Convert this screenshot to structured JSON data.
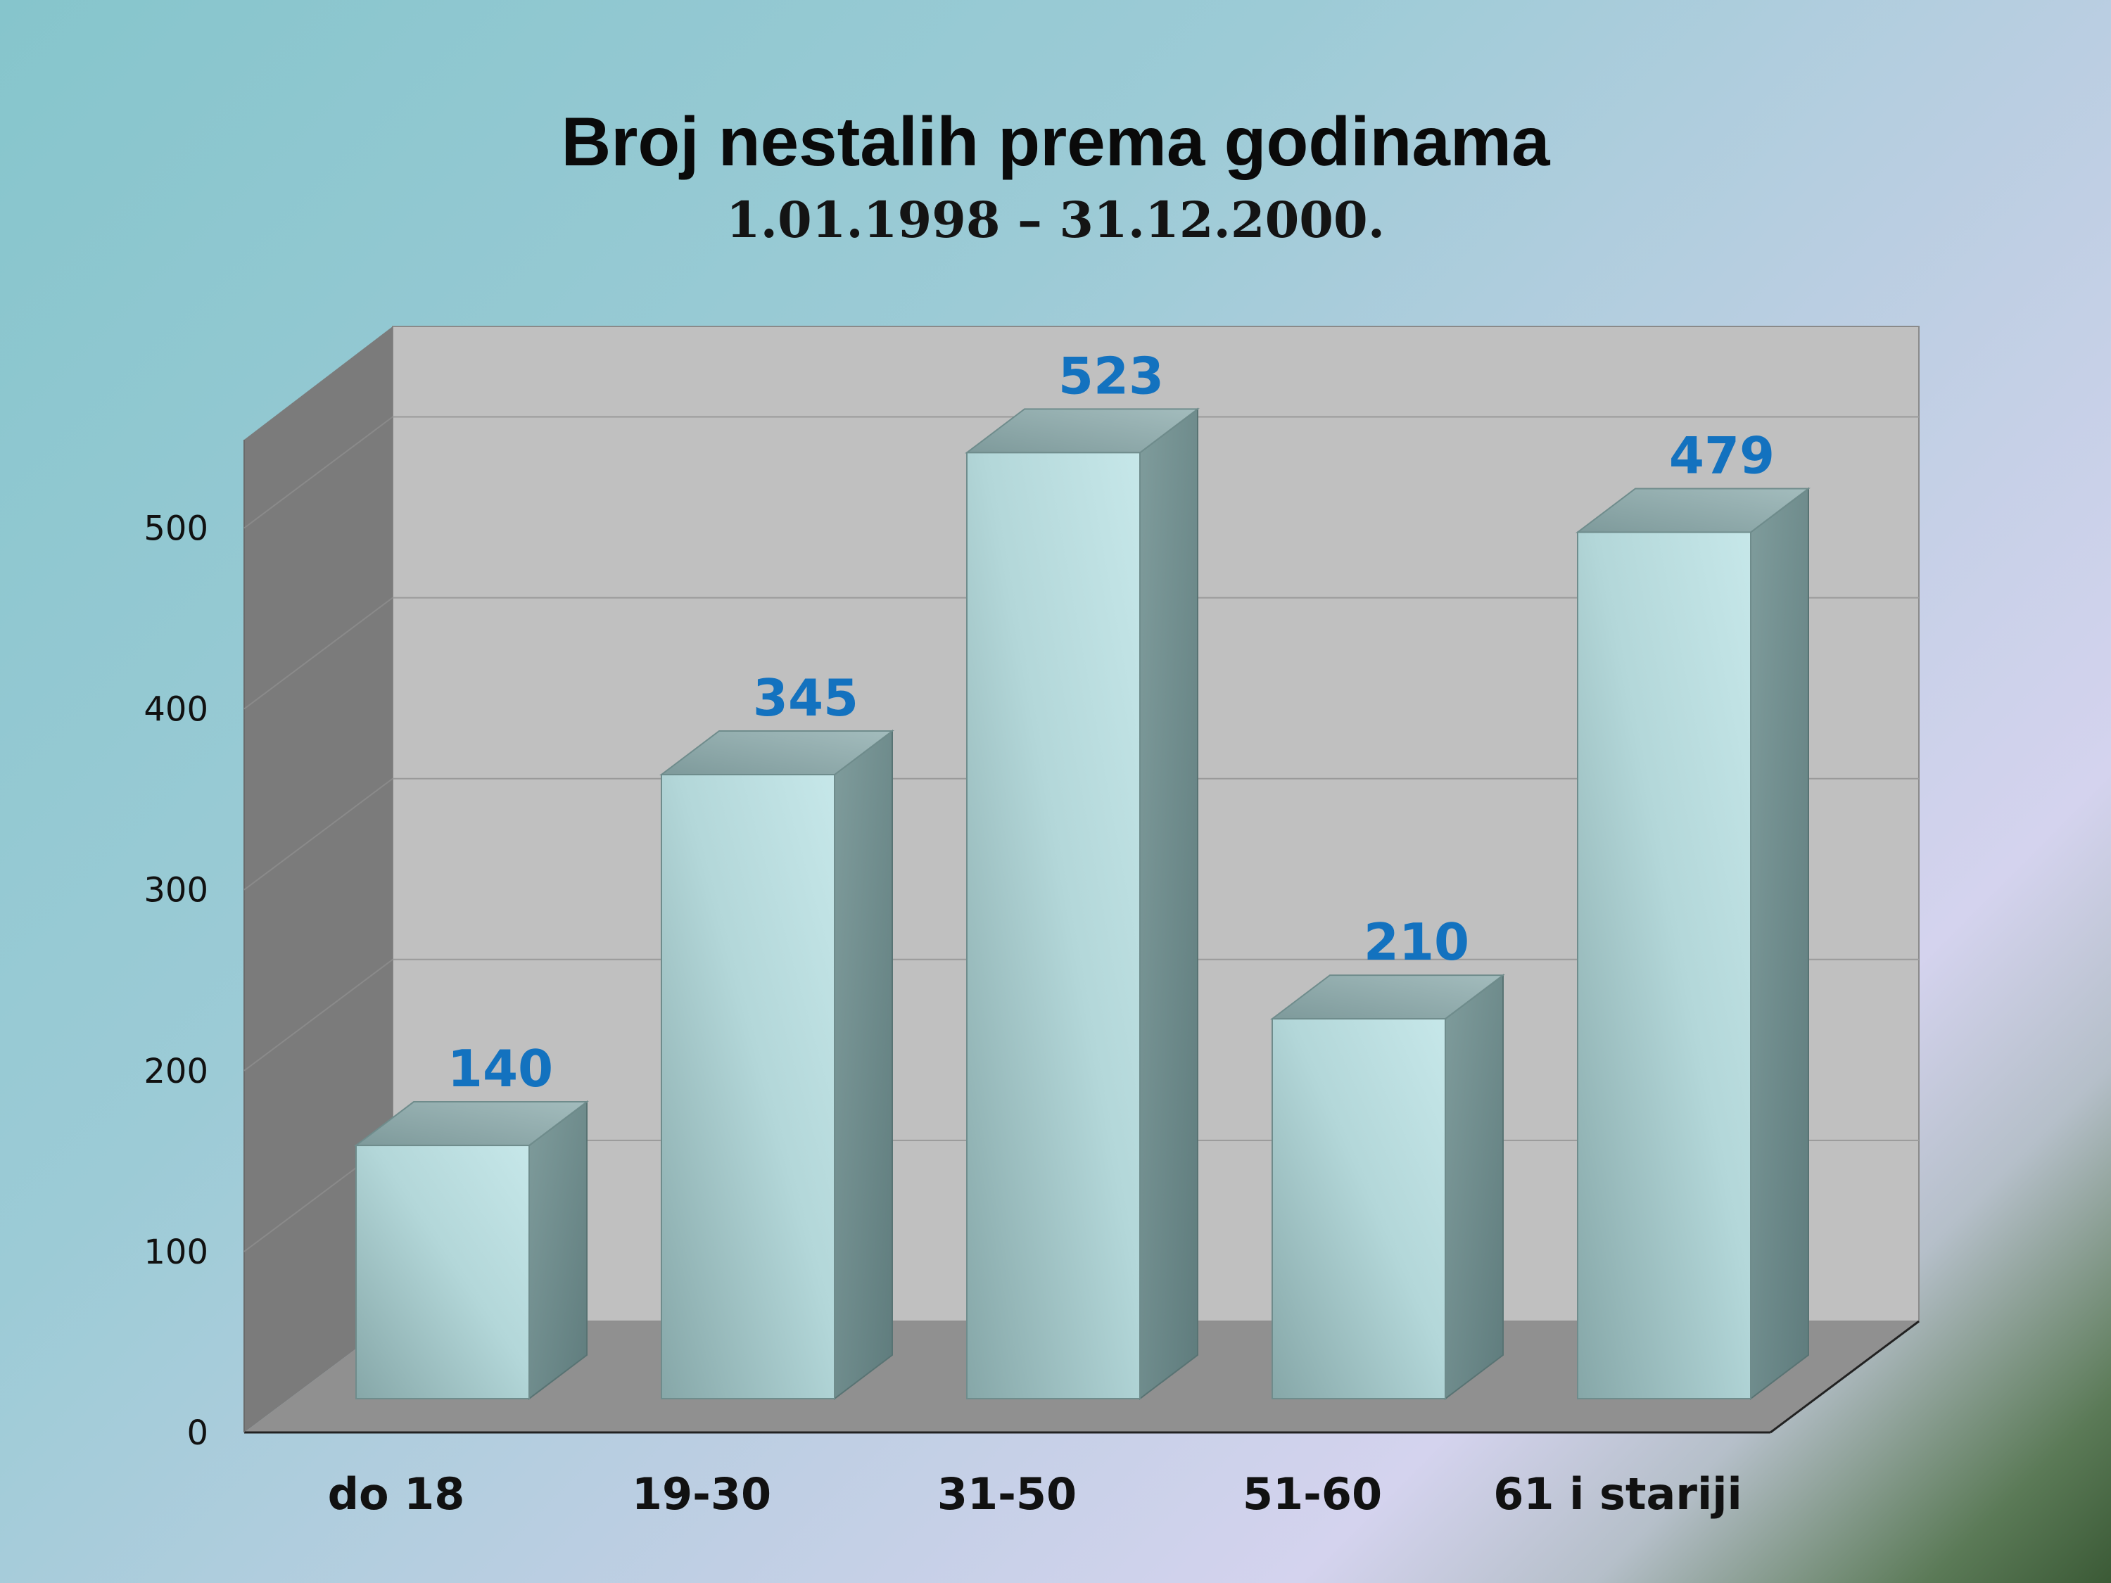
{
  "chart_data": {
    "type": "bar",
    "title": "Broj nestalih prema godinama",
    "subtitle": "1.01.1998 – 31.12.2000.",
    "categories": [
      "do 18",
      "19-30",
      "31-50",
      "51-60",
      "61 i stariji"
    ],
    "values": [
      140,
      345,
      523,
      210,
      479
    ],
    "value_labels": [
      "140",
      "345",
      "523",
      "210",
      "479"
    ],
    "ylim": [
      0,
      500
    ],
    "yticks": [
      0,
      100,
      200,
      300,
      400,
      500
    ],
    "ytick_labels": [
      "0",
      "100",
      "200",
      "300",
      "400",
      "500"
    ],
    "grid": true,
    "style": "3d-column",
    "colors": {
      "bar_front": "#a9cfd1",
      "bar_side": "#6c8c8c",
      "bar_top": "#89a6a7",
      "value_label": "#1372bf",
      "back_wall": "#c0c0c0",
      "side_wall": "#7b7b7b",
      "floor": "#909090"
    }
  }
}
